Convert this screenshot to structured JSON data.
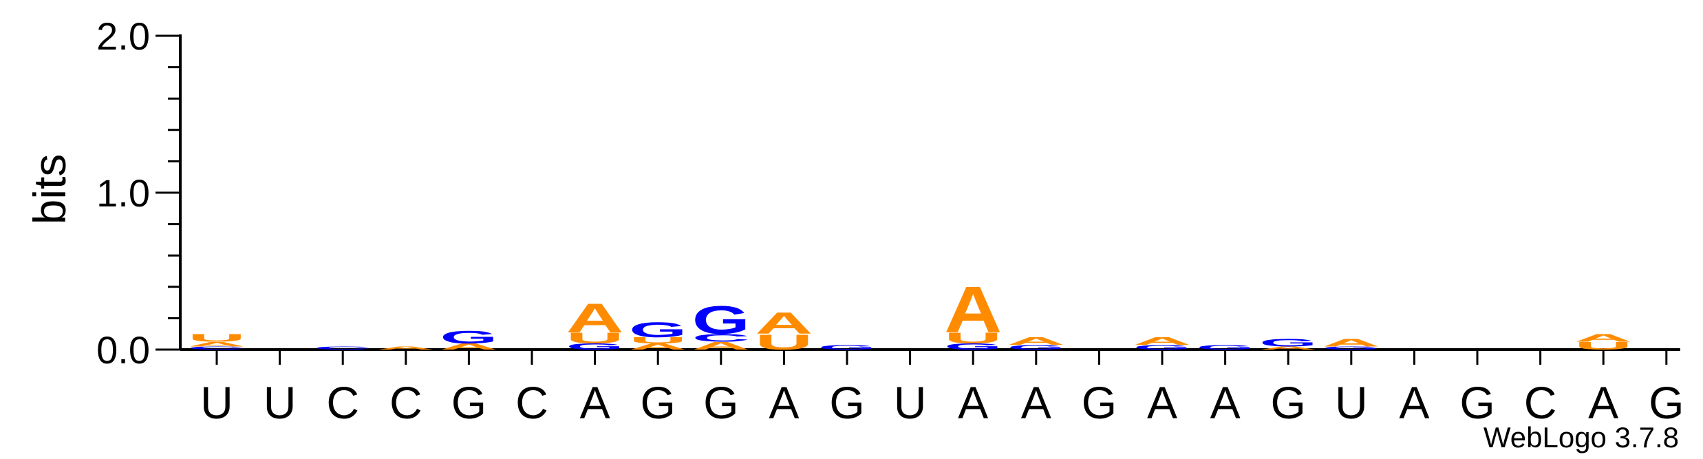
{
  "chart_data": {
    "type": "sequence-logo",
    "ylabel": "bits",
    "ylim": [
      0,
      2.0
    ],
    "yticks": [
      {
        "value": 0.0,
        "label": "0.0"
      },
      {
        "value": 1.0,
        "label": "1.0"
      },
      {
        "value": 2.0,
        "label": "2.0"
      }
    ],
    "colors": {
      "A": "#ff8c00",
      "U": "#ff8c00",
      "G": "#0000ff",
      "C": "#0000ff"
    },
    "positions": [
      {
        "label": "U",
        "stack": [
          {
            "letter": "C",
            "bits": 0.02
          },
          {
            "letter": "A",
            "bits": 0.03
          },
          {
            "letter": "U",
            "bits": 0.05
          }
        ]
      },
      {
        "label": "U",
        "stack": []
      },
      {
        "label": "C",
        "stack": [
          {
            "letter": "C",
            "bits": 0.02
          }
        ]
      },
      {
        "label": "C",
        "stack": [
          {
            "letter": "A",
            "bits": 0.02
          }
        ]
      },
      {
        "label": "G",
        "stack": [
          {
            "letter": "A",
            "bits": 0.04
          },
          {
            "letter": "G",
            "bits": 0.08
          }
        ]
      },
      {
        "label": "C",
        "stack": []
      },
      {
        "label": "A",
        "stack": [
          {
            "letter": "G",
            "bits": 0.04
          },
          {
            "letter": "U",
            "bits": 0.07
          },
          {
            "letter": "A",
            "bits": 0.19
          }
        ]
      },
      {
        "label": "G",
        "stack": [
          {
            "letter": "A",
            "bits": 0.04
          },
          {
            "letter": "U",
            "bits": 0.04
          },
          {
            "letter": "G",
            "bits": 0.1
          }
        ]
      },
      {
        "label": "G",
        "stack": [
          {
            "letter": "A",
            "bits": 0.05
          },
          {
            "letter": "C",
            "bits": 0.05
          },
          {
            "letter": "G",
            "bits": 0.18
          }
        ]
      },
      {
        "label": "A",
        "stack": [
          {
            "letter": "U",
            "bits": 0.1
          },
          {
            "letter": "A",
            "bits": 0.14
          }
        ]
      },
      {
        "label": "G",
        "stack": [
          {
            "letter": "G",
            "bits": 0.03
          }
        ]
      },
      {
        "label": "U",
        "stack": []
      },
      {
        "label": "A",
        "stack": [
          {
            "letter": "G",
            "bits": 0.04
          },
          {
            "letter": "U",
            "bits": 0.07
          },
          {
            "letter": "A",
            "bits": 0.3
          }
        ]
      },
      {
        "label": "A",
        "stack": [
          {
            "letter": "G",
            "bits": 0.03
          },
          {
            "letter": "A",
            "bits": 0.05
          }
        ]
      },
      {
        "label": "G",
        "stack": []
      },
      {
        "label": "A",
        "stack": [
          {
            "letter": "G",
            "bits": 0.03
          },
          {
            "letter": "A",
            "bits": 0.05
          }
        ]
      },
      {
        "label": "A",
        "stack": [
          {
            "letter": "G",
            "bits": 0.03
          }
        ]
      },
      {
        "label": "G",
        "stack": [
          {
            "letter": "A",
            "bits": 0.02
          },
          {
            "letter": "G",
            "bits": 0.05
          }
        ]
      },
      {
        "label": "U",
        "stack": [
          {
            "letter": "G",
            "bits": 0.02
          },
          {
            "letter": "A",
            "bits": 0.05
          }
        ]
      },
      {
        "label": "A",
        "stack": []
      },
      {
        "label": "G",
        "stack": []
      },
      {
        "label": "C",
        "stack": []
      },
      {
        "label": "A",
        "stack": [
          {
            "letter": "U",
            "bits": 0.05
          },
          {
            "letter": "A",
            "bits": 0.05
          }
        ]
      },
      {
        "label": "G",
        "stack": []
      }
    ],
    "credit": "WebLogo 3.7.8"
  }
}
